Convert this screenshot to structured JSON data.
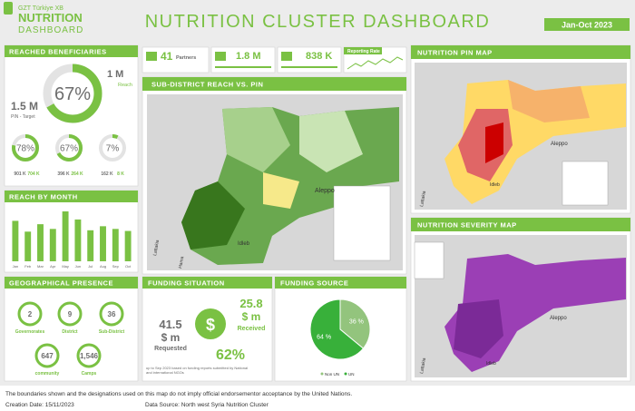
{
  "header": {
    "logo_line1": "GZT Türkiye XB",
    "logo_line2": "NUTRITION",
    "logo_line3": "DASHBOARD",
    "title": "NUTRITION CLUSTER DASHBOARD",
    "period": "Jan-Oct 2023"
  },
  "reached": {
    "title": "REACHED BENEFICIARIES",
    "reach": "1 M",
    "reach_label": "Reach",
    "target": "1.5 M",
    "target_label": "PIN - Target",
    "percent": 67,
    "percent_label": "67%",
    "groups": [
      {
        "percent": 78,
        "label": "78%",
        "a": "901 K",
        "b": "704 K"
      },
      {
        "percent": 67,
        "label": "67%",
        "a": "396 K",
        "b": "264 K"
      },
      {
        "percent": 7,
        "label": "7%",
        "a": "162 K",
        "b": "8 K"
      }
    ]
  },
  "reach_by_month": {
    "title": "REACH BY MONTH",
    "categories": [
      "Jan",
      "Feb",
      "Mar",
      "Apr",
      "May",
      "Jun",
      "Jul",
      "Aug",
      "Sep",
      "Oct"
    ],
    "values": [
      60,
      44,
      55,
      48,
      74,
      62,
      46,
      52,
      48,
      45
    ]
  },
  "kpis": {
    "partners": "41",
    "partners_label": "Partners",
    "total": "1.8 M",
    "count": "838 K",
    "reporting": "Reporting Rate"
  },
  "geo": {
    "title": "GEOGRAPHICAL PRESENCE",
    "items": [
      {
        "value": "2",
        "label": "Governorates"
      },
      {
        "value": "9",
        "label": "District"
      },
      {
        "value": "36",
        "label": "Sub-District"
      },
      {
        "value": "647",
        "label": "community"
      },
      {
        "value": "1,546",
        "label": "Camps"
      }
    ]
  },
  "reach_map": {
    "title": "SUB-DISTRICT REACH VS. PIN",
    "places": [
      "Aleppo",
      "Idleb",
      "Lattakia",
      "Hama"
    ]
  },
  "funding": {
    "title": "FUNDING SITUATION",
    "requested": "41.5",
    "requested_unit": "$ m",
    "requested_label": "Requested",
    "received": "25.8",
    "received_unit": "$ m",
    "received_label": "Received",
    "percent": "62%",
    "note": [
      "up to Sep 2023 based on funding reports submitted by National",
      "and international NGOs"
    ]
  },
  "funding_source": {
    "title": "FUNDING SOURCE",
    "labels": [
      "Non UN",
      "UN"
    ],
    "values": [
      36,
      64
    ],
    "value_labels": [
      "36 %",
      "64 %"
    ],
    "colors": [
      "#93c47d",
      "#38b03a"
    ]
  },
  "pin_map": {
    "title": "NUTRITION PIN MAP",
    "places": [
      "Aleppo",
      "Idleb",
      "Lattakia"
    ]
  },
  "severity_map": {
    "title": "NUTRITION SEVERITY MAP",
    "places": [
      "Aleppo",
      "Idleb",
      "Lattakia"
    ]
  },
  "footer": {
    "disclaimer": "The boundaries shown and the designations used on this map do not imply official endorsementor acceptance by the United Nations.",
    "created": "Creation Date: 15/11/2023",
    "source": "Data Source: North west Syria Nutrition Cluster"
  }
}
